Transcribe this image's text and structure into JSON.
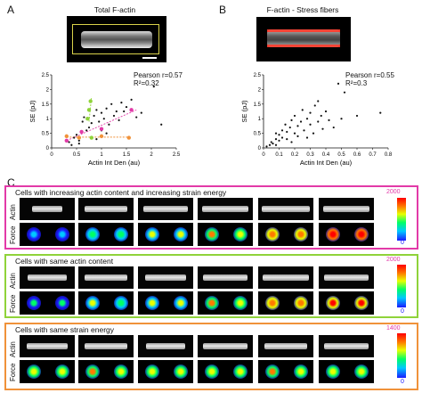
{
  "panelA": {
    "letter": "A",
    "title": "Total F-actin",
    "stats": {
      "line1": "Pearson r=0.57",
      "line2": "R²=0.32"
    }
  },
  "panelB": {
    "letter": "B",
    "title": "F-actin - Stress fibers",
    "stats": {
      "line1": "Pearson r=0.55",
      "line2": "R²=0.3"
    }
  },
  "panelC": {
    "letter": "C",
    "row_labels": {
      "force": "Force",
      "actin": "Actin"
    },
    "boxes": [
      {
        "title": "Cells with increasing actin content and increasing strain energy",
        "color": "#e23aa8",
        "cbar_max": "2000",
        "cbar_min": "0"
      },
      {
        "title": "Cells with same actin content",
        "color": "#8fd33a",
        "cbar_max": "2000",
        "cbar_min": "0"
      },
      {
        "title": "Cells with same strain energy",
        "color": "#f0923a",
        "cbar_max": "1400",
        "cbar_min": "0"
      }
    ]
  },
  "chart_data": [
    {
      "type": "scatter",
      "title": "",
      "xlabel": "Actin Int Den (au)",
      "ylabel": "SE (pJ)",
      "xlim": [
        0,
        2.5
      ],
      "ylim": [
        0,
        2.5
      ],
      "xticks": [
        "0",
        "0.5",
        "1",
        "1.5",
        "2",
        "2.5"
      ],
      "yticks": [
        "0",
        "0.5",
        "1",
        "1.5",
        "2",
        "2.5"
      ],
      "series": [
        {
          "color": "#111111",
          "x": [
            0.35,
            0.45,
            0.5,
            0.55,
            0.6,
            0.62,
            0.7,
            0.75,
            0.8,
            0.85,
            0.9,
            0.95,
            1.0,
            1.05,
            1.1,
            1.15,
            1.2,
            1.3,
            1.35,
            1.4,
            1.5,
            1.6,
            1.7,
            1.8,
            2.05,
            2.2,
            0.65,
            0.55,
            0.4,
            0.9,
            1.0,
            1.1,
            1.25,
            1.45
          ],
          "y": [
            0.2,
            0.35,
            0.45,
            0.25,
            0.55,
            0.9,
            0.6,
            0.7,
            0.85,
            1.1,
            1.3,
            0.9,
            1.2,
            1.0,
            1.35,
            0.8,
            1.5,
            1.25,
            0.95,
            1.55,
            1.4,
            1.65,
            1.05,
            1.2,
            2.1,
            0.8,
            1.05,
            0.15,
            0.1,
            0.3,
            0.6,
            0.5,
            1.1,
            1.25
          ]
        },
        {
          "color": "#e23aa8",
          "x": [
            0.3,
            0.6,
            1.0,
            1.6
          ],
          "y": [
            0.25,
            0.55,
            0.65,
            1.3
          ]
        },
        {
          "color": "#8fd33a",
          "x": [
            0.72,
            0.75,
            0.78,
            0.8
          ],
          "y": [
            1.0,
            1.3,
            1.6,
            0.35
          ]
        },
        {
          "color": "#f0923a",
          "x": [
            0.3,
            0.55,
            1.0,
            1.55
          ],
          "y": [
            0.4,
            0.35,
            0.4,
            0.35
          ]
        }
      ]
    },
    {
      "type": "scatter",
      "title": "",
      "xlabel": "Actin Int Den (au)",
      "ylabel": "SE (pJ)",
      "xlim": [
        0,
        0.8
      ],
      "ylim": [
        0,
        2.5
      ],
      "xticks": [
        "0",
        "0.1",
        "0.2",
        "0.3",
        "0.4",
        "0.5",
        "0.6",
        "0.7",
        "0.8"
      ],
      "yticks": [
        "0",
        "0.5",
        "1",
        "1.5",
        "2",
        "2.5"
      ],
      "series": [
        {
          "color": "#111111",
          "x": [
            0.02,
            0.04,
            0.05,
            0.06,
            0.08,
            0.08,
            0.1,
            0.1,
            0.12,
            0.12,
            0.14,
            0.15,
            0.15,
            0.17,
            0.18,
            0.2,
            0.2,
            0.22,
            0.22,
            0.24,
            0.25,
            0.26,
            0.28,
            0.3,
            0.3,
            0.32,
            0.33,
            0.35,
            0.37,
            0.38,
            0.4,
            0.42,
            0.45,
            0.48,
            0.5,
            0.52,
            0.6,
            0.75,
            0.18,
            0.28,
            0.35,
            0.08
          ],
          "y": [
            0.05,
            0.1,
            0.2,
            0.15,
            0.3,
            0.5,
            0.25,
            0.45,
            0.6,
            0.35,
            0.8,
            0.55,
            0.3,
            0.7,
            0.95,
            0.5,
            1.1,
            0.75,
            0.4,
            0.9,
            1.3,
            0.6,
            1.0,
            0.8,
            1.2,
            0.5,
            1.45,
            0.9,
            1.1,
            0.65,
            1.25,
            0.95,
            0.7,
            2.2,
            1.0,
            1.9,
            1.1,
            1.2,
            0.2,
            0.35,
            1.6,
            0.1
          ]
        }
      ]
    }
  ]
}
